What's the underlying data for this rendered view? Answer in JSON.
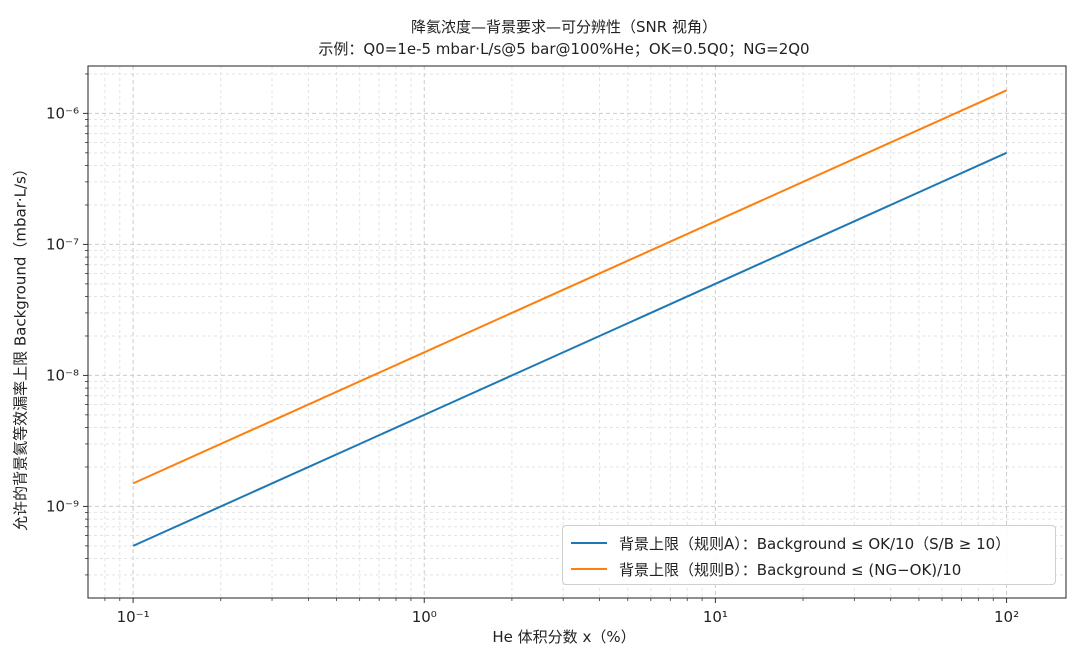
{
  "chart_data": {
    "type": "line",
    "title": "降氦浓度—背景要求—可分辨性（SNR 视角）",
    "subtitle": "示例：Q0=1e-5 mbar·L/s@5 bar@100%He；OK=0.5Q0；NG=2Q0",
    "xlabel": "He 体积分数 x（%）",
    "ylabel": "允许的背景氦等效漏率上限 Background（mbar·L/s）",
    "x_scale": "log",
    "y_scale": "log",
    "xlim": [
      0.07,
      160
    ],
    "ylim": [
      2e-10,
      2.3e-06
    ],
    "x_ticks": [
      {
        "label": "10⁻¹"
      },
      {
        "label": "10⁰"
      },
      {
        "label": "10¹"
      },
      {
        "label": "10²"
      }
    ],
    "y_ticks": [
      {
        "label": "10⁻⁹"
      },
      {
        "label": "10⁻⁸"
      },
      {
        "label": "10⁻⁷"
      },
      {
        "label": "10⁻⁶"
      }
    ],
    "grid": true,
    "legend_position": "lower-right",
    "series": [
      {
        "name": "背景上限（规则A）：Background ≤ OK/10（S/B ≥ 10）",
        "color": "#1f77b4",
        "x": [
          0.1,
          1,
          10,
          100
        ],
        "y": [
          5e-10,
          5e-09,
          5e-08,
          5e-07
        ]
      },
      {
        "name": "背景上限（规则B）：Background ≤ (NG−OK)/10",
        "color": "#ff7f0e",
        "x": [
          0.1,
          1,
          10,
          100
        ],
        "y": [
          1.5e-09,
          1.5e-08,
          1.5e-07,
          1.5e-06
        ]
      }
    ]
  }
}
